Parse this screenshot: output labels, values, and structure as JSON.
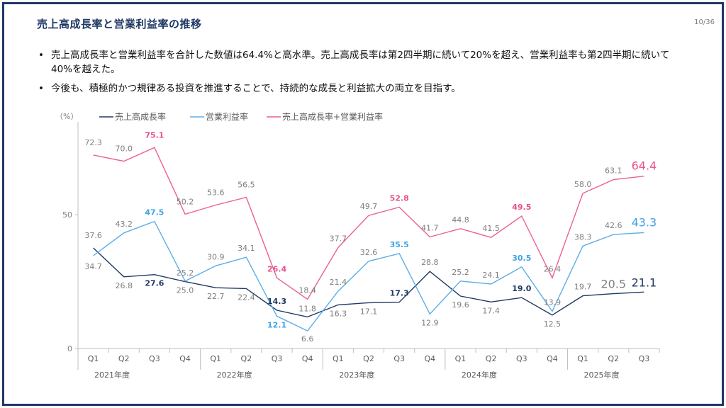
{
  "slide": {
    "title": "売上高成長率と営業利益率の推移",
    "page": "10/36",
    "bullets": [
      "売上高成長率と営業利益率を合計した数値は64.4%と高水準。売上高成長率は第2四半期に続いて20%を超え、営業利益率も第2四半期に続いて40%を越えた。",
      "今後も、積極的かつ規律ある投資を推進することで、持続的な成長と利益拡大の両立を目指す。"
    ]
  },
  "chart_data": {
    "type": "line",
    "unit_label": "（%）",
    "ylim": [
      0,
      90
    ],
    "yticks": [
      "0",
      "50"
    ],
    "x": [
      "Q1",
      "Q2",
      "Q3",
      "Q4",
      "Q1",
      "Q2",
      "Q3",
      "Q4",
      "Q1",
      "Q2",
      "Q3",
      "Q4",
      "Q1",
      "Q2",
      "Q3",
      "Q4",
      "Q1",
      "Q2",
      "Q3"
    ],
    "years": [
      "2021年度",
      "2022年度",
      "2023年度",
      "2024年度",
      "2025年度"
    ],
    "series": [
      {
        "name": "売上高成長率",
        "color": "#203864",
        "values": [
          37.6,
          26.8,
          27.6,
          25.0,
          22.7,
          22.4,
          14.3,
          11.8,
          16.3,
          17.1,
          17.3,
          28.8,
          19.6,
          17.4,
          19.0,
          12.5,
          19.7,
          20.5,
          21.1
        ],
        "labels": [
          "37.6",
          "26.8",
          "27.6",
          "25.0",
          "22.7",
          "22.4",
          "14.3",
          "11.8",
          "16.3",
          "17.1",
          "17.3",
          "28.8",
          "19.6",
          "17.4",
          "19.0",
          "12.5",
          "19.7",
          "20.5",
          "21.1"
        ]
      },
      {
        "name": "営業利益率",
        "color": "#5aaee8",
        "values": [
          34.7,
          43.2,
          47.5,
          25.2,
          30.9,
          34.1,
          12.1,
          6.6,
          21.4,
          32.6,
          35.5,
          12.9,
          25.2,
          24.1,
          30.5,
          13.9,
          38.3,
          42.6,
          43.3
        ],
        "labels": [
          "34.7",
          "43.2",
          "47.5",
          "25.2",
          "30.9",
          "34.1",
          "12.1",
          "6.6",
          "21.4",
          "32.6",
          "35.5",
          "12.9",
          "25.2",
          "24.1",
          "30.5",
          "13.9",
          "38.3",
          "42.6",
          "43.3"
        ]
      },
      {
        "name": "売上高成長率+営業利益率",
        "color": "#ec5f95",
        "values": [
          72.3,
          70.0,
          75.1,
          50.2,
          53.6,
          56.5,
          26.4,
          18.4,
          37.7,
          49.7,
          52.8,
          41.7,
          44.8,
          41.5,
          49.5,
          26.4,
          58.0,
          63.1,
          64.4
        ],
        "labels": [
          "72.3",
          "70.0",
          "75.1",
          "50.2",
          "53.6",
          "56.5",
          "26.4",
          "18.4",
          "37.7",
          "49.7",
          "52.8",
          "41.7",
          "44.8",
          "41.5",
          "49.5",
          "26.4",
          "58.0",
          "63.1",
          "64.4"
        ]
      }
    ]
  }
}
